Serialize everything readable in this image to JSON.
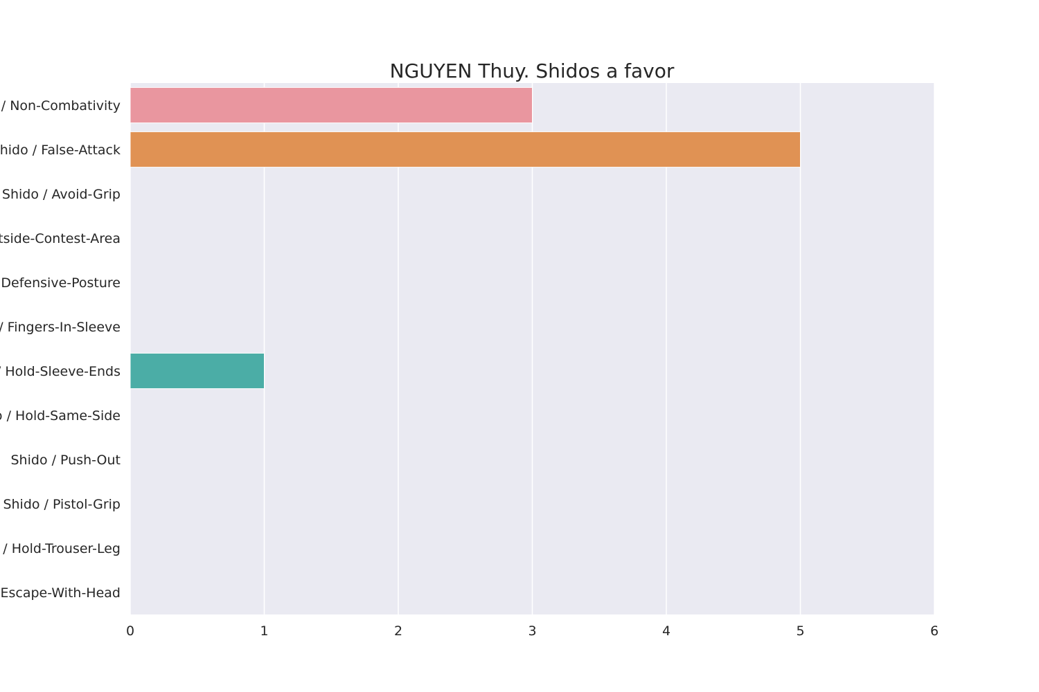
{
  "chart_data": {
    "type": "bar",
    "orientation": "horizontal",
    "title": "NGUYEN Thuy. Shidos a favor",
    "xlabel": "",
    "ylabel": "",
    "categories": [
      "Shido / Non-Combativity",
      "Shido / False-Attack",
      "Shido / Avoid-Grip",
      "Shido / Outside-Contest-Area",
      "Shido / Defensive-Posture",
      "Shido / Fingers-In-Sleeve",
      "Shido / Hold-Sleeve-Ends",
      "Shido / Hold-Same-Side",
      "Shido / Push-Out",
      "Shido / Pistol-Grip",
      "Shido / Hold-Trouser-Leg",
      "Shido / Escape-With-Head"
    ],
    "values": [
      3,
      5,
      0,
      0,
      0,
      0,
      1,
      0,
      0,
      0,
      0,
      0
    ],
    "colors": [
      "#e9969f",
      "#e09254",
      "#cda349",
      "#b1aa4f",
      "#90b052",
      "#55b35c",
      "#4bada6",
      "#4daec1",
      "#5aa8d3",
      "#a199dd",
      "#d585dc",
      "#e38cc4"
    ],
    "xlim": [
      0,
      6
    ],
    "xticks": [
      0,
      1,
      2,
      3,
      4,
      5,
      6
    ],
    "grid": true,
    "background": "#eaeaf2",
    "legend": "none"
  }
}
